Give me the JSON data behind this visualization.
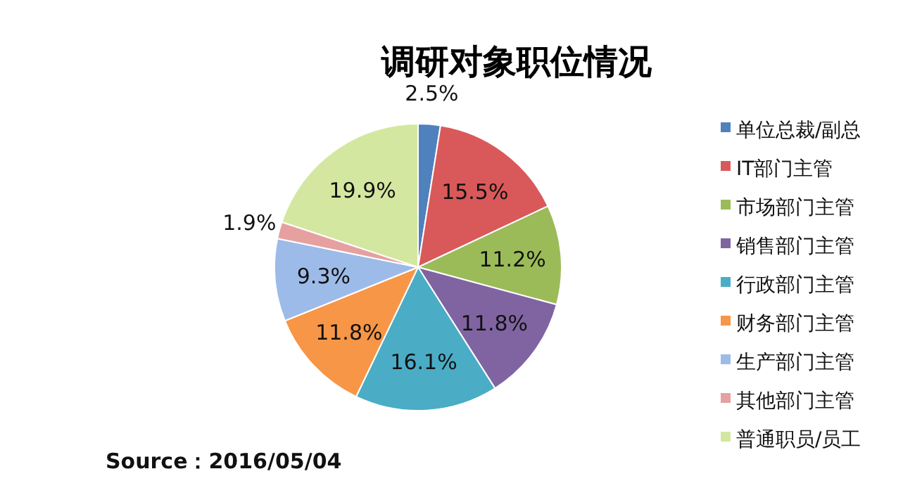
{
  "chart_data": {
    "type": "pie",
    "title": "调研对象职位情况",
    "categories": [
      "单位总裁/副总",
      "IT部门主管",
      "市场部门主管",
      "销售部门主管",
      "行政部门主管",
      "财务部门主管",
      "生产部门主管",
      "其他部门主管",
      "普通职员/员工"
    ],
    "values": [
      2.5,
      15.5,
      11.2,
      11.8,
      16.1,
      11.8,
      9.3,
      1.9,
      19.9
    ],
    "colors": [
      "#4f81bd",
      "#d9595a",
      "#9bbb59",
      "#8064a2",
      "#4bacc6",
      "#f79646",
      "#9dbbe8",
      "#e6a0a0",
      "#d4e7a0"
    ],
    "value_labels": [
      "2.5%",
      "15.5%",
      "11.2%",
      "11.8%",
      "16.1%",
      "11.8%",
      "9.3%",
      "1.9%",
      "19.9%"
    ],
    "legend": "right",
    "annotations": [
      "Source：2016/05/04"
    ]
  }
}
